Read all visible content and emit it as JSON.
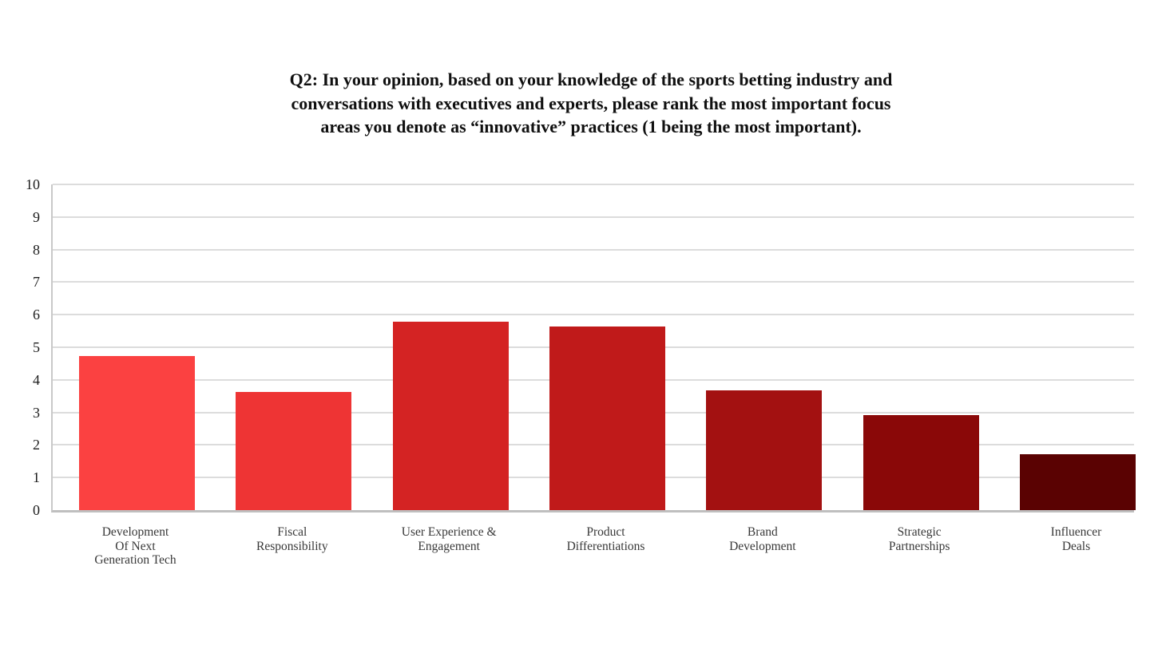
{
  "title": "Q2: In your opinion, based on your knowledge of the sports betting industry and\nconversations with executives and experts, please rank the most important focus\nareas you denote as “innovative” practices (1 being the most important).",
  "chart_data": {
    "type": "bar",
    "title": "Q2: In your opinion, based on your knowledge of the sports betting industry and conversations with executives and experts, please rank the most important focus areas you denote as “innovative” practices (1 being the most important).",
    "categories": [
      "Development\nOf Next\nGeneration Tech",
      "Fiscal\nResponsibility",
      "User Experience &\nEngagement",
      "Product\nDifferentiations",
      "Brand\nDevelopment",
      "Strategic\nPartnerships",
      "Influencer\nDeals"
    ],
    "values": [
      4.7,
      3.6,
      5.75,
      5.6,
      3.65,
      2.9,
      1.7
    ],
    "bar_colors": [
      "#fb4141",
      "#ee3434",
      "#d42323",
      "#c01a1a",
      "#a31111",
      "#8a0808",
      "#5a0202"
    ],
    "xlabel": "",
    "ylabel": "",
    "ylim": [
      0,
      10
    ],
    "yticks": [
      0,
      1,
      2,
      3,
      4,
      5,
      6,
      7,
      8,
      9,
      10
    ],
    "grid": "horizontal",
    "legend": "none"
  },
  "colors": {
    "background": "#ffffff",
    "gridline": "#dcdcdc",
    "axis_line": "#c4c4c4",
    "title_text": "#101010",
    "tick_text": "#1e1e1e",
    "category_text": "#383838"
  }
}
